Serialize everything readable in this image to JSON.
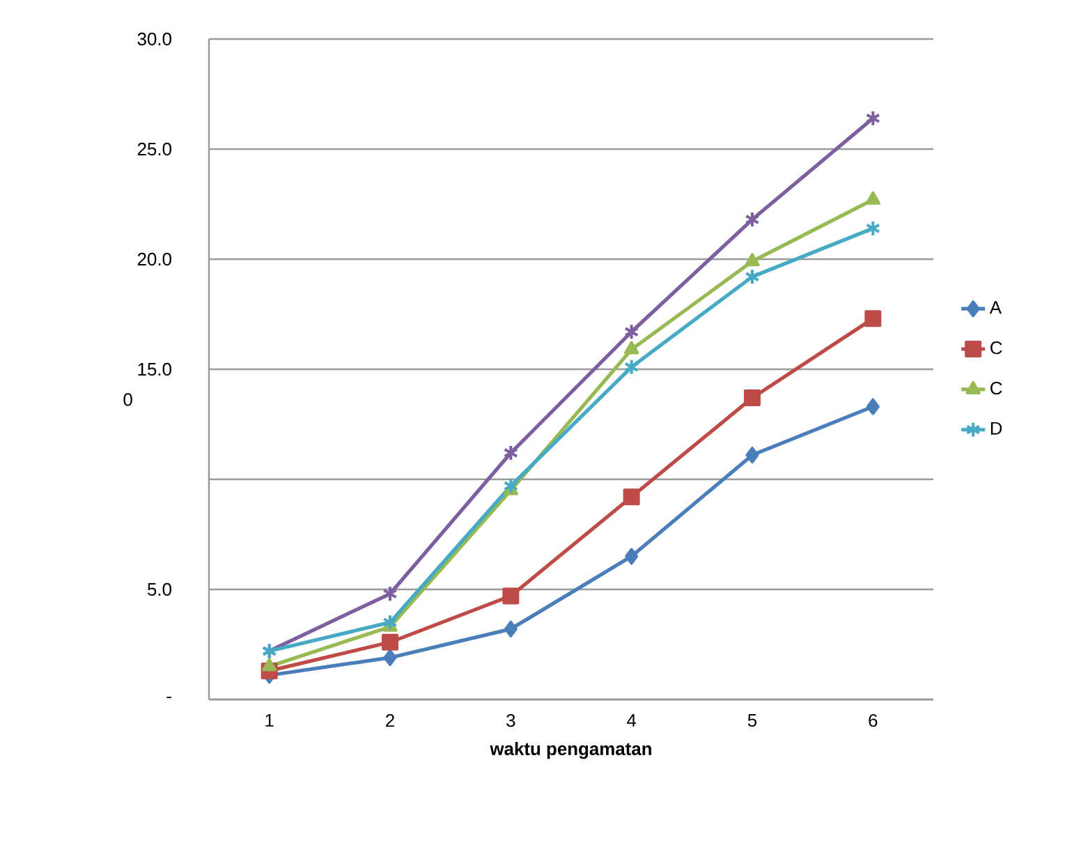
{
  "chart_data": {
    "type": "line",
    "xlabel": "waktu pengamatan",
    "categories": [
      "1",
      "2",
      "3",
      "4",
      "5",
      "6"
    ],
    "series": [
      {
        "name": "A",
        "color": "#4a7ebb",
        "marker": "diamond",
        "values": [
          1.1,
          1.9,
          3.2,
          6.5,
          11.1,
          13.3
        ]
      },
      {
        "name": "C",
        "color": "#be4b48",
        "marker": "square",
        "values": [
          1.3,
          2.6,
          4.7,
          9.2,
          13.7,
          17.3
        ]
      },
      {
        "name": "C",
        "color": "#98b954",
        "marker": "triangle",
        "values": [
          1.5,
          3.3,
          9.5,
          15.9,
          19.9,
          22.7
        ]
      },
      {
        "color": "#7d5fa0",
        "marker": "cross",
        "values": [
          2.2,
          4.8,
          11.2,
          16.7,
          21.8,
          26.4
        ]
      },
      {
        "name": "D",
        "color": "#46aac5",
        "marker": "cross",
        "values": [
          2.2,
          3.5,
          9.7,
          15.1,
          19.2,
          21.4
        ]
      }
    ],
    "ylim": [
      0,
      30
    ],
    "yticks": [
      {
        "value": 0,
        "label": "-"
      },
      {
        "value": 5,
        "label": "5.0"
      },
      {
        "value": 10,
        "label": null
      },
      {
        "value": 15,
        "label": "15.0"
      },
      {
        "value": 20,
        "label": "20.0"
      },
      {
        "value": 25,
        "label": "25.0"
      },
      {
        "value": 30,
        "label": "30.0"
      }
    ],
    "grid": "y",
    "legend": "right",
    "line_style": "solid",
    "annotations": [
      "0"
    ]
  }
}
